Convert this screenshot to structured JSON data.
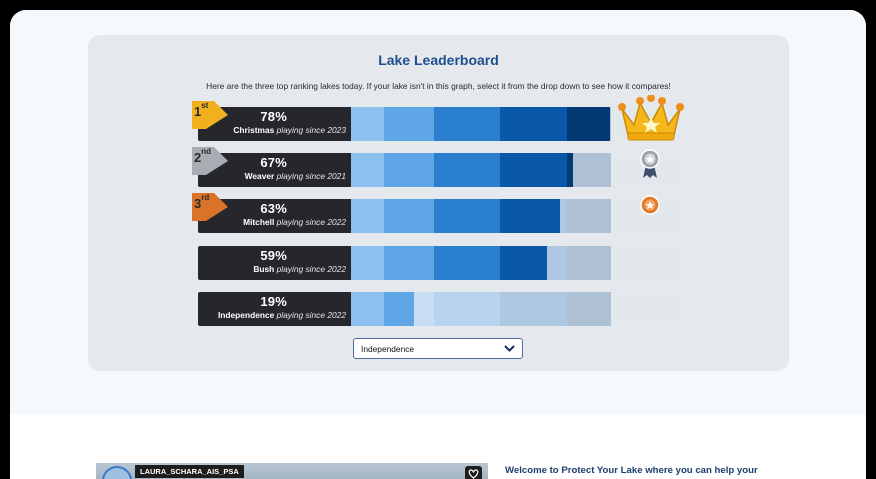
{
  "leaderboard": {
    "title": "Lake Leaderboard",
    "description": "Here are the three top ranking lakes today. If your lake isn't in this graph, select it from the drop down to see how it compares!",
    "rows": [
      {
        "rank": "1",
        "rank_suffix": "st",
        "percent": "78%",
        "value": 78,
        "name": "Christmas",
        "since": "playing since 2023",
        "badge_color": "#f2b01e",
        "award": "crown-icon"
      },
      {
        "rank": "2",
        "rank_suffix": "nd",
        "percent": "67%",
        "value": 67,
        "name": "Weaver",
        "since": "playing since 2021",
        "badge_color": "#a8adb3",
        "award": "silver-medal-icon"
      },
      {
        "rank": "3",
        "rank_suffix": "rd",
        "percent": "63%",
        "value": 63,
        "name": "Mitchell",
        "since": "playing since 2022",
        "badge_color": "#d9732a",
        "award": "bronze-medal-icon"
      },
      {
        "rank": "",
        "rank_suffix": "",
        "percent": "59%",
        "value": 59,
        "name": "Bush",
        "since": "playing since 2022",
        "badge_color": "",
        "award": ""
      },
      {
        "rank": "",
        "rank_suffix": "",
        "percent": "19%",
        "value": 19,
        "name": "Independence",
        "since": "playing since 2022",
        "badge_color": "",
        "award": ""
      }
    ],
    "segment_colors": [
      "#8cc0ef",
      "#5fa6e6",
      "#2a7fd0",
      "#0a58a8",
      "#043a73",
      "#c3c9cf"
    ],
    "dropdown": {
      "selected": "Independence"
    }
  },
  "bottom": {
    "media_tag": "LAURA_SCHARA_AIS_PSA",
    "welcome_text": "Welcome to Protect Your Lake where you can help your"
  }
}
